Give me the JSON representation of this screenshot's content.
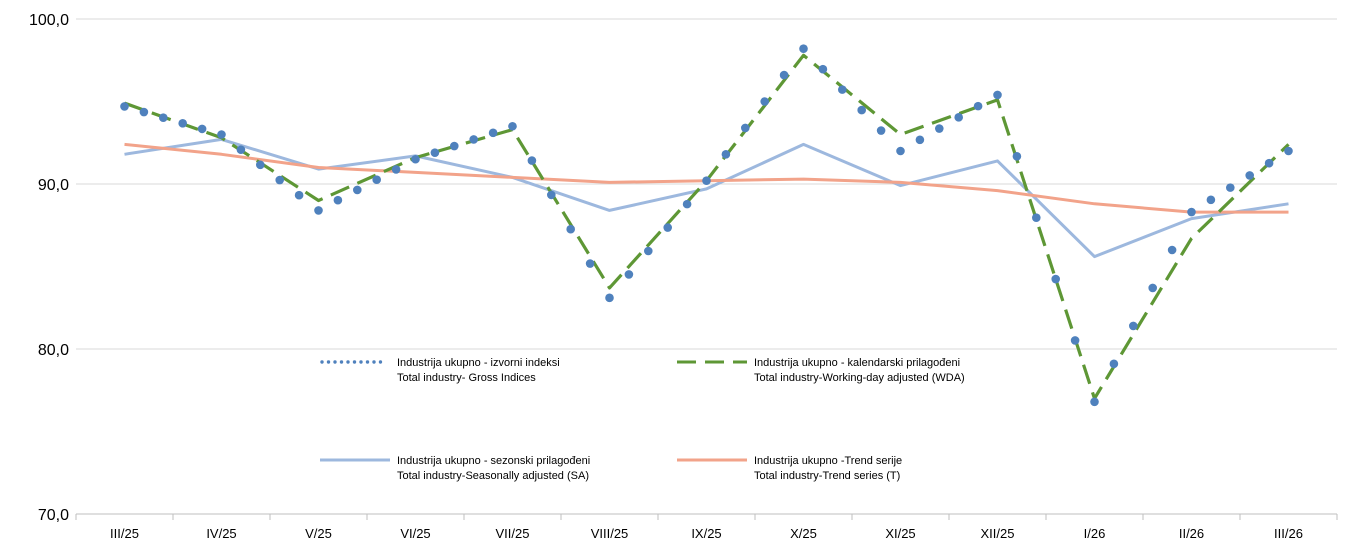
{
  "chart_data": {
    "type": "line",
    "categories": [
      "III/25",
      "IV/25",
      "V/25",
      "VI/25",
      "VII/25",
      "VIII/25",
      "IX/25",
      "X/25",
      "XI/25",
      "XII/25",
      "I/26",
      "II/26",
      "III/26"
    ],
    "ylim": [
      70,
      100
    ],
    "yticks": [
      "70,0",
      "80,0",
      "90,0",
      "100,0"
    ],
    "grid": true,
    "series": [
      {
        "key": "gross",
        "name_hr": "Industrija ukupno - izvorni indeksi",
        "name_en": "Total industry- Gross Indices",
        "color": "#4f81bd",
        "style": "dotted",
        "values": [
          94.7,
          93.0,
          88.4,
          91.5,
          93.5,
          83.1,
          90.2,
          98.2,
          92.0,
          95.4,
          76.8,
          88.3,
          92.0
        ]
      },
      {
        "key": "wda",
        "name_hr": "Industrija ukupno - kalendarski prilagođeni",
        "name_en": "Total industry-Working-day adjusted (WDA)",
        "color": "#5e9735",
        "style": "dashed",
        "values": [
          94.9,
          92.8,
          89.0,
          91.6,
          93.3,
          83.7,
          90.2,
          97.8,
          93.0,
          95.1,
          77.0,
          86.7,
          92.4
        ]
      },
      {
        "key": "sa",
        "name_hr": "Industrija ukupno - sezonski prilagođeni",
        "name_en": "Total industry-Seasonally adjusted (SA)",
        "color": "#9db8de",
        "style": "solid",
        "values": [
          91.8,
          92.7,
          90.9,
          91.7,
          90.4,
          88.4,
          89.7,
          92.4,
          89.9,
          91.4,
          85.6,
          87.9,
          88.8
        ]
      },
      {
        "key": "trend",
        "name_hr": "Industrija ukupno -Trend serije",
        "name_en": "Total industry-Trend series (T)",
        "color": "#f2a38a",
        "style": "solid",
        "values": [
          92.4,
          91.8,
          91.0,
          90.7,
          90.4,
          90.1,
          90.2,
          90.3,
          90.1,
          89.6,
          88.8,
          88.3,
          88.3
        ]
      }
    ]
  }
}
